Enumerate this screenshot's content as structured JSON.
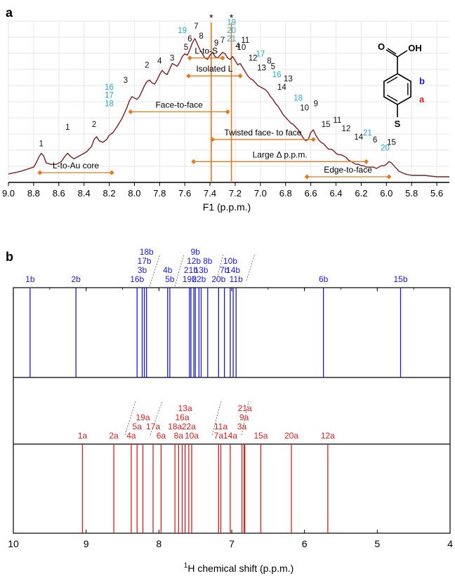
{
  "colors": {
    "nmr_trace": "#7a1f26",
    "annotation": "#e07b1f",
    "cyan_label": "#2aa8c8",
    "black_label": "#111111",
    "b_sticks": "#1a1adb",
    "a_sticks": "#d62020",
    "grid": "#e6e6e6"
  },
  "chart_data": [
    {
      "type": "line",
      "panel_label": "a",
      "xlabel": "F1 (p.p.m.)",
      "xlim": [
        9.0,
        5.5
      ],
      "x_reversed": true,
      "x_ticks": [
        9.0,
        8.8,
        8.6,
        8.4,
        8.2,
        8.0,
        7.8,
        7.6,
        7.4,
        7.2,
        7.0,
        6.8,
        6.6,
        6.4,
        6.2,
        6.0,
        5.8,
        5.6
      ],
      "grid": true,
      "star_marker": "*",
      "series": [
        {
          "x": [
            9.0,
            8.9,
            8.8,
            8.78,
            8.76,
            8.74,
            8.72,
            8.7,
            8.66,
            8.62,
            8.58,
            8.55,
            8.53,
            8.51,
            8.48,
            8.42,
            8.38,
            8.34,
            8.32,
            8.3,
            8.28,
            8.25,
            8.22,
            8.2,
            8.17,
            8.14,
            8.12,
            8.1,
            8.08,
            8.06,
            8.04,
            8.02,
            8.0,
            7.98,
            7.96,
            7.94,
            7.92,
            7.9,
            7.88,
            7.86,
            7.84,
            7.82,
            7.8,
            7.78,
            7.76,
            7.74,
            7.72,
            7.7,
            7.68,
            7.66,
            7.64,
            7.62,
            7.6,
            7.58,
            7.56,
            7.54,
            7.52,
            7.5,
            7.48,
            7.46,
            7.44,
            7.42,
            7.4,
            7.38,
            7.36,
            7.34,
            7.32,
            7.3,
            7.28,
            7.26,
            7.24,
            7.22,
            7.2,
            7.18,
            7.16,
            7.14,
            7.12,
            7.1,
            7.08,
            7.06,
            7.04,
            7.02,
            7.0,
            6.98,
            6.96,
            6.94,
            6.92,
            6.9,
            6.88,
            6.86,
            6.84,
            6.82,
            6.8,
            6.78,
            6.76,
            6.74,
            6.72,
            6.7,
            6.68,
            6.66,
            6.64,
            6.62,
            6.6,
            6.58,
            6.56,
            6.54,
            6.52,
            6.5,
            6.48,
            6.46,
            6.44,
            6.42,
            6.4,
            6.38,
            6.36,
            6.34,
            6.32,
            6.3,
            6.28,
            6.26,
            6.24,
            6.22,
            6.2,
            6.18,
            6.16,
            6.14,
            6.12,
            6.1,
            6.08,
            6.06,
            6.04,
            6.02,
            6.0,
            5.98,
            5.96,
            5.94,
            5.92,
            5.9,
            5.85,
            5.8,
            5.7,
            5.6,
            5.5
          ],
          "y": [
            0.02,
            0.04,
            0.07,
            0.1,
            0.14,
            0.17,
            0.15,
            0.1,
            0.09,
            0.09,
            0.11,
            0.15,
            0.17,
            0.15,
            0.13,
            0.16,
            0.18,
            0.22,
            0.27,
            0.29,
            0.26,
            0.25,
            0.27,
            0.3,
            0.32,
            0.36,
            0.39,
            0.42,
            0.46,
            0.5,
            0.55,
            0.58,
            0.57,
            0.56,
            0.58,
            0.62,
            0.66,
            0.69,
            0.7,
            0.68,
            0.67,
            0.7,
            0.74,
            0.77,
            0.75,
            0.74,
            0.78,
            0.82,
            0.81,
            0.8,
            0.83,
            0.87,
            0.89,
            0.88,
            0.92,
            0.97,
            1.0,
            0.96,
            0.92,
            0.89,
            0.86,
            0.85,
            0.88,
            0.9,
            0.87,
            0.86,
            0.88,
            0.9,
            0.89,
            0.86,
            0.85,
            0.87,
            0.84,
            0.81,
            0.82,
            0.79,
            0.76,
            0.73,
            0.71,
            0.7,
            0.68,
            0.66,
            0.65,
            0.64,
            0.63,
            0.61,
            0.58,
            0.56,
            0.53,
            0.51,
            0.48,
            0.45,
            0.43,
            0.41,
            0.39,
            0.38,
            0.36,
            0.34,
            0.31,
            0.28,
            0.26,
            0.27,
            0.32,
            0.34,
            0.3,
            0.27,
            0.25,
            0.24,
            0.22,
            0.2,
            0.2,
            0.19,
            0.17,
            0.16,
            0.16,
            0.15,
            0.14,
            0.12,
            0.11,
            0.1,
            0.09,
            0.09,
            0.08,
            0.08,
            0.07,
            0.07,
            0.07,
            0.07,
            0.06,
            0.07,
            0.08,
            0.08,
            0.09,
            0.11,
            0.1,
            0.08,
            0.06,
            0.04,
            0.02,
            0.01,
            0.01,
            0.0,
            0.0
          ]
        }
      ],
      "peak_labels": [
        {
          "text": "1",
          "x": 8.74,
          "y": 0.22,
          "color": "black"
        },
        {
          "text": "1",
          "x": 8.53,
          "y": 0.34,
          "color": "black"
        },
        {
          "text": "2",
          "x": 8.32,
          "y": 0.36,
          "color": "black"
        },
        {
          "text": "16",
          "x": 8.2,
          "y": 0.63,
          "color": "cyan"
        },
        {
          "text": "17",
          "x": 8.2,
          "y": 0.57,
          "color": "cyan"
        },
        {
          "text": "18",
          "x": 8.2,
          "y": 0.51,
          "color": "cyan"
        },
        {
          "text": "3",
          "x": 8.07,
          "y": 0.68,
          "color": "black"
        },
        {
          "text": "2",
          "x": 7.9,
          "y": 0.79,
          "color": "black"
        },
        {
          "text": "4",
          "x": 7.8,
          "y": 0.82,
          "color": "black"
        },
        {
          "text": "3",
          "x": 7.7,
          "y": 0.84,
          "color": "black"
        },
        {
          "text": "5",
          "x": 7.59,
          "y": 0.92,
          "color": "black"
        },
        {
          "text": "19",
          "x": 7.62,
          "y": 1.04,
          "color": "cyan"
        },
        {
          "text": "6",
          "x": 7.56,
          "y": 0.98,
          "color": "black"
        },
        {
          "text": "7",
          "x": 7.51,
          "y": 1.07,
          "color": "black"
        },
        {
          "text": "8",
          "x": 7.47,
          "y": 1.0,
          "color": "black"
        },
        {
          "text": "9",
          "x": 7.35,
          "y": 0.95,
          "color": "black"
        },
        {
          "text": "7",
          "x": 7.3,
          "y": 0.97,
          "color": "black"
        },
        {
          "text": "19",
          "x": 7.23,
          "y": 1.1,
          "color": "cyan"
        },
        {
          "text": "20",
          "x": 7.23,
          "y": 1.04,
          "color": "cyan"
        },
        {
          "text": "21",
          "x": 7.23,
          "y": 0.98,
          "color": "cyan"
        },
        {
          "text": "4",
          "x": 7.18,
          "y": 0.93,
          "color": "black"
        },
        {
          "text": "11",
          "x": 7.12,
          "y": 0.97,
          "color": "black"
        },
        {
          "text": "10",
          "x": 7.15,
          "y": 0.92,
          "color": "black"
        },
        {
          "text": "12",
          "x": 7.06,
          "y": 0.84,
          "color": "black"
        },
        {
          "text": "17",
          "x": 7.0,
          "y": 0.87,
          "color": "cyan"
        },
        {
          "text": "8",
          "x": 6.93,
          "y": 0.82,
          "color": "black"
        },
        {
          "text": "13",
          "x": 6.99,
          "y": 0.77,
          "color": "black"
        },
        {
          "text": "5",
          "x": 6.9,
          "y": 0.78,
          "color": "black"
        },
        {
          "text": "16",
          "x": 6.87,
          "y": 0.72,
          "color": "cyan"
        },
        {
          "text": "13",
          "x": 6.78,
          "y": 0.69,
          "color": "black"
        },
        {
          "text": "14",
          "x": 6.83,
          "y": 0.63,
          "color": "black"
        },
        {
          "text": "18",
          "x": 6.7,
          "y": 0.55,
          "color": "cyan"
        },
        {
          "text": "10",
          "x": 6.65,
          "y": 0.48,
          "color": "black"
        },
        {
          "text": "9",
          "x": 6.56,
          "y": 0.51,
          "color": "black"
        },
        {
          "text": "15",
          "x": 6.48,
          "y": 0.36,
          "color": "black"
        },
        {
          "text": "11",
          "x": 6.39,
          "y": 0.39,
          "color": "black"
        },
        {
          "text": "12",
          "x": 6.32,
          "y": 0.33,
          "color": "black"
        },
        {
          "text": "14",
          "x": 6.22,
          "y": 0.27,
          "color": "black"
        },
        {
          "text": "21",
          "x": 6.15,
          "y": 0.3,
          "color": "cyan"
        },
        {
          "text": "6",
          "x": 6.09,
          "y": 0.25,
          "color": "black"
        },
        {
          "text": "20",
          "x": 6.01,
          "y": 0.19,
          "color": "cyan"
        },
        {
          "text": "15",
          "x": 5.96,
          "y": 0.23,
          "color": "black"
        }
      ],
      "vertical_markers": [
        7.39,
        7.23
      ],
      "annotations": [
        {
          "text": "L-to-S",
          "x1": 7.56,
          "x2": 7.3,
          "y": 0.86
        },
        {
          "text": "Isolated L",
          "x1": 7.57,
          "x2": 7.16,
          "y": 0.73
        },
        {
          "text": "Face-to-face",
          "x1": 8.03,
          "x2": 7.26,
          "y": 0.47
        },
        {
          "text": "Twisted face- to face",
          "x1": 7.38,
          "x2": 6.58,
          "y": 0.27
        },
        {
          "text": "L-to-Au core",
          "x1": 8.75,
          "x2": 8.18,
          "y": 0.03
        },
        {
          "text": "Large Δ p.p.m.",
          "x1": 7.53,
          "x2": 6.16,
          "y": 0.11
        },
        {
          "text": "Edge-to-face",
          "x1": 6.63,
          "x2": 5.98,
          "y": 0.0
        }
      ],
      "molecule_labels": {
        "carbonyl_o": "O",
        "hydroxyl": "OH",
        "sulfur": "S",
        "site_b": "b",
        "site_a": "a"
      }
    },
    {
      "type": "stick",
      "panel_label": "b",
      "xlabel_sup": "1",
      "xlabel": "H chemical shift (p.p.m.)",
      "xlim": [
        10,
        4
      ],
      "x_reversed": true,
      "x_ticks": [
        10,
        9,
        8,
        7,
        6,
        5,
        4
      ],
      "series": [
        {
          "name": "b",
          "color_key": "b_sticks",
          "sticks": [
            {
              "label": "1b",
              "x": 9.77
            },
            {
              "label": "2b",
              "x": 9.14
            },
            {
              "label": "16b",
              "x": 8.3
            },
            {
              "label": "3b",
              "x": 8.23
            },
            {
              "label": "17b",
              "x": 8.2
            },
            {
              "label": "18b",
              "x": 8.17
            },
            {
              "label": "4b",
              "x": 7.88
            },
            {
              "label": "5b",
              "x": 7.85
            },
            {
              "label": "19b",
              "x": 7.58
            },
            {
              "label": "21b",
              "x": 7.56
            },
            {
              "label": "12b",
              "x": 7.52
            },
            {
              "label": "9b",
              "x": 7.5
            },
            {
              "label": "22b",
              "x": 7.45
            },
            {
              "label": "13b",
              "x": 7.42
            },
            {
              "label": "8b",
              "x": 7.33
            },
            {
              "label": "20b",
              "x": 7.18
            },
            {
              "label": "7b",
              "x": 7.1
            },
            {
              "label": "10b",
              "x": 7.02
            },
            {
              "label": "14b",
              "x": 6.98
            },
            {
              "label": "11b",
              "x": 6.94
            },
            {
              "label": "6b",
              "x": 5.74
            },
            {
              "label": "15b",
              "x": 4.68
            }
          ],
          "label_rows": [
            [
              "1b",
              "2b",
              "16b",
              "5b",
              "19b",
              "22b",
              "20b",
              "11b",
              "6b",
              "15b"
            ],
            [
              "3b",
              "4b",
              "21b",
              "13b",
              "7b",
              "14b"
            ],
            [
              "17b",
              "12b",
              "8b",
              "10b"
            ],
            [
              "18b",
              "9b"
            ]
          ]
        },
        {
          "name": "a",
          "color_key": "a_sticks",
          "sticks": [
            {
              "label": "1a",
              "x": 9.05
            },
            {
              "label": "2a",
              "x": 8.62
            },
            {
              "label": "4a",
              "x": 8.38
            },
            {
              "label": "5a",
              "x": 8.3
            },
            {
              "label": "19a",
              "x": 8.22
            },
            {
              "label": "17a",
              "x": 8.08
            },
            {
              "label": "6a",
              "x": 7.97
            },
            {
              "label": "18a",
              "x": 7.78
            },
            {
              "label": "8a",
              "x": 7.73
            },
            {
              "label": "16a",
              "x": 7.68
            },
            {
              "label": "13a",
              "x": 7.64
            },
            {
              "label": "22a",
              "x": 7.59
            },
            {
              "label": "10a",
              "x": 7.55
            },
            {
              "label": "7a",
              "x": 7.18
            },
            {
              "label": "11a",
              "x": 7.15
            },
            {
              "label": "14a",
              "x": 7.02
            },
            {
              "label": "3a",
              "x": 6.86
            },
            {
              "label": "9a",
              "x": 6.83
            },
            {
              "label": "21a",
              "x": 6.82
            },
            {
              "label": "15a",
              "x": 6.6
            },
            {
              "label": "20a",
              "x": 6.18
            },
            {
              "label": "12a",
              "x": 5.68
            }
          ],
          "label_rows": [
            [
              "1a",
              "2a",
              "4a",
              "6a",
              "8a",
              "10a",
              "7a",
              "14a",
              "15a",
              "20a",
              "12a"
            ],
            [
              "5a",
              "17a",
              "18a",
              "22a",
              "11a",
              "3a"
            ],
            [
              "19a",
              "16a",
              "9a"
            ],
            [
              "13a",
              "21a"
            ]
          ]
        }
      ]
    }
  ]
}
